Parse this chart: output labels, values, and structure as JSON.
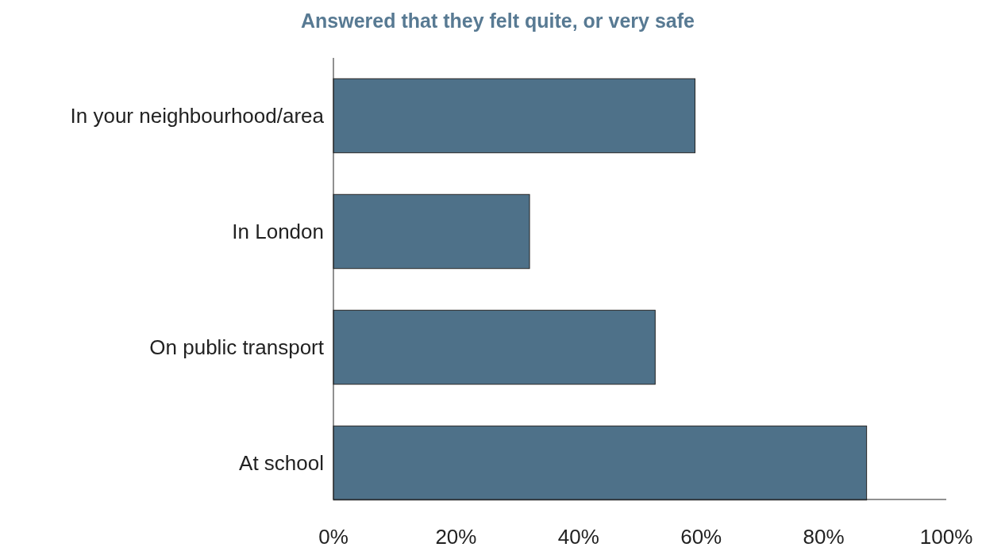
{
  "chart_data": {
    "type": "bar",
    "orientation": "horizontal",
    "title": "Answered that they felt quite, or very safe",
    "categories": [
      "In your neighbourhood/area",
      "In London",
      "On public transport",
      "At school"
    ],
    "values": [
      59,
      32,
      52.5,
      87
    ],
    "color": "#4e7189",
    "xlim": [
      0,
      100
    ],
    "xticks": [
      {
        "value": 0,
        "label": "0%"
      },
      {
        "value": 20,
        "label": "20%"
      },
      {
        "value": 40,
        "label": "40%"
      },
      {
        "value": 60,
        "label": "60%"
      },
      {
        "value": 80,
        "label": "80%"
      },
      {
        "value": 100,
        "label": "100%"
      }
    ],
    "grid": false
  }
}
